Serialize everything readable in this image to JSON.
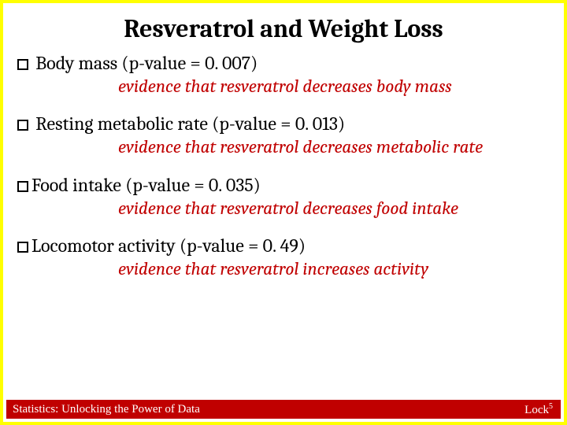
{
  "title": "Resveratrol and Weight Loss",
  "items": [
    {
      "heading": " Body mass (p-value = 0. 007)",
      "evidence": "evidence that resveratrol decreases body mass"
    },
    {
      "heading": " Resting metabolic rate (p-value = 0. 013)",
      "evidence": "evidence that resveratrol decreases metabolic rate"
    },
    {
      "heading": "Food intake (p-value = 0. 035)",
      "evidence": "evidence that resveratrol decreases food intake"
    },
    {
      "heading": "Locomotor activity (p-value = 0. 49)",
      "evidence": "evidence that resveratrol increases activity"
    }
  ],
  "footer": {
    "left": "Statistics: Unlocking the Power of Data",
    "right_base": "Lock",
    "right_sup": "5"
  },
  "colors": {
    "border": "#ffff00",
    "evidence_text": "#c00000",
    "footer_bg": "#c00000",
    "footer_text": "#ffffff",
    "body_text": "#000000",
    "background": "#ffffff"
  },
  "typography": {
    "title_fontsize": 32,
    "heading_fontsize": 24,
    "evidence_fontsize": 23,
    "footer_fontsize": 15,
    "font_family_main": "Cambria, Georgia, serif",
    "font_family_footer": "Times New Roman, serif"
  }
}
